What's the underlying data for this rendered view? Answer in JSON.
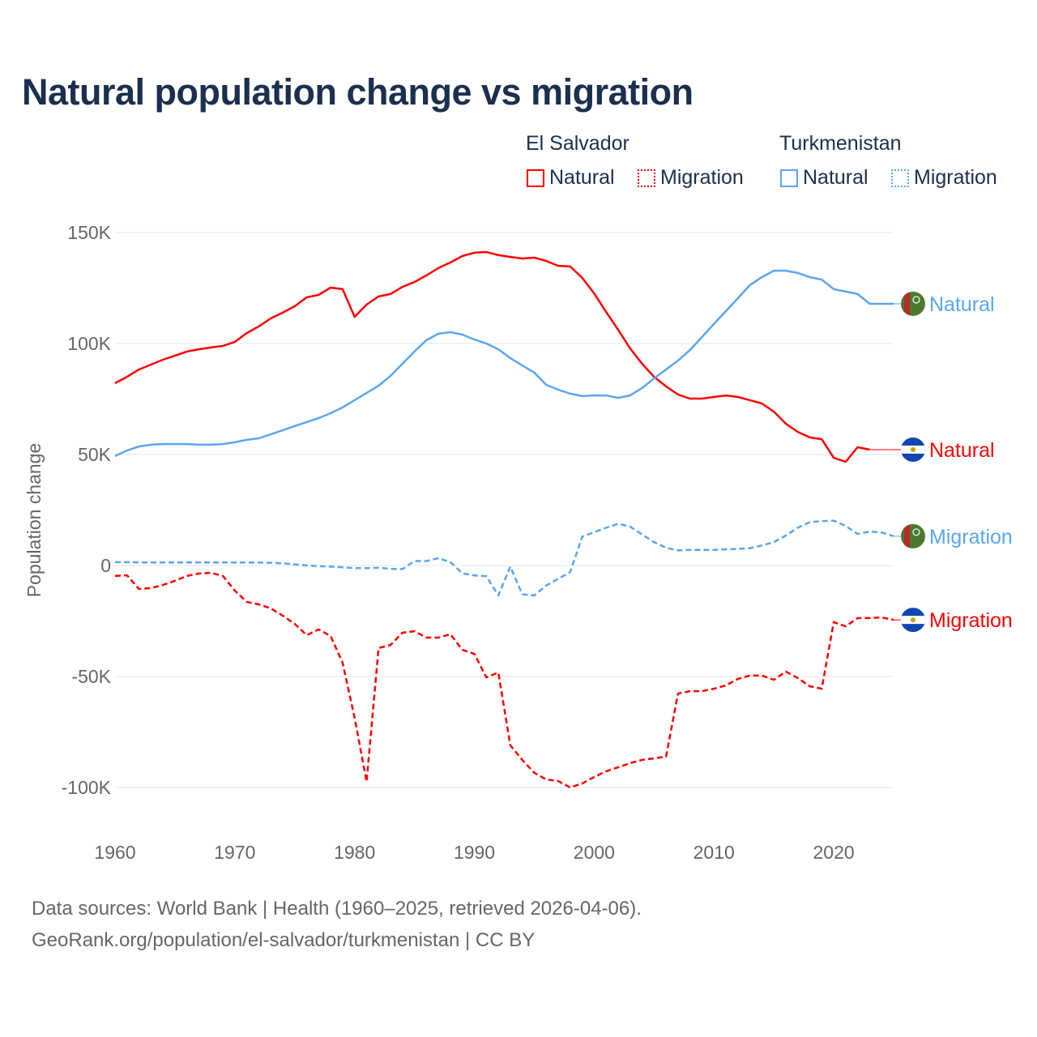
{
  "title": "Natural population change vs migration",
  "legend": {
    "groups": [
      {
        "name": "El Salvador",
        "color": "#ff0000",
        "items": [
          "Natural",
          "Migration"
        ]
      },
      {
        "name": "Turkmenistan",
        "color": "#5ba6ee",
        "items": [
          "Natural",
          "Migration"
        ]
      }
    ]
  },
  "footer": {
    "line1": "Data sources: World Bank | Health (1960–2025, retrieved 2026-04-06).",
    "line2": "GeoRank.org/population/el-salvador/turkmenistan | CC BY"
  },
  "chart_data": {
    "type": "line",
    "title": "Natural population change vs migration",
    "xlabel": "",
    "ylabel": "Population change",
    "xlim": [
      1960,
      2025
    ],
    "ylim": [
      -110000,
      155000
    ],
    "x_ticks": [
      1960,
      1970,
      1980,
      1990,
      2000,
      2010,
      2020
    ],
    "x_tick_labels": [
      "1960",
      "1970",
      "1980",
      "1990",
      "2000",
      "2010",
      "2020"
    ],
    "y_ticks": [
      150000,
      100000,
      50000,
      0,
      -50000,
      -100000
    ],
    "y_tick_labels": [
      "150K",
      "100K",
      "50K",
      "0",
      "-50K",
      "-100K"
    ],
    "grid": true,
    "legend_position": "top-right",
    "series": [
      {
        "name": "El Salvador Natural",
        "end_label": "Natural",
        "country": "El Salvador",
        "color": "#ff0000",
        "dashed": false,
        "start": 1960,
        "values_k": [
          82.1,
          85,
          88.3,
          90.5,
          92.7,
          94.5,
          96.4,
          97.4,
          98.2,
          98.9,
          100.7,
          104.7,
          107.7,
          111.3,
          113.9,
          116.8,
          120.8,
          121.9,
          125.2,
          124.5,
          112,
          117.5,
          121.2,
          122.3,
          125.5,
          127.7,
          130.7,
          134,
          136.5,
          139.4,
          140.9,
          141.2,
          139.8,
          139,
          138.3,
          138.7,
          137.2,
          135,
          134.7,
          129.6,
          122.6,
          114.2,
          106.2,
          97.8,
          90.9,
          85,
          80.7,
          77,
          75.2,
          75.2,
          75.9,
          76.6,
          75.9,
          74.5,
          73,
          69.3,
          63.9,
          60.2,
          57.7,
          56.9,
          48.5,
          46.7,
          53.3,
          52.2
        ]
      },
      {
        "name": "Turkmenistan Natural",
        "end_label": "Natural",
        "country": "Turkmenistan",
        "color": "#5ba6ee",
        "dashed": false,
        "start": 1960,
        "values_k": [
          49.3,
          51.8,
          53.6,
          54.4,
          54.7,
          54.7,
          54.7,
          54.4,
          54.4,
          54.7,
          55.5,
          56.6,
          57.3,
          59.1,
          60.9,
          62.8,
          64.6,
          66.4,
          68.6,
          71.2,
          74.5,
          77.7,
          81,
          85.4,
          90.9,
          96.4,
          101.5,
          104.4,
          105.1,
          104,
          101.8,
          100,
          97.4,
          93.4,
          90.1,
          86.9,
          81.4,
          79.2,
          77.4,
          76.3,
          76.6,
          76.6,
          75.5,
          76.6,
          79.9,
          84.3,
          88.3,
          92.3,
          97.1,
          102.9,
          108.8,
          114.6,
          120.4,
          126.3,
          129.9,
          132.8,
          132.8,
          131.8,
          129.9,
          128.8,
          124.5,
          123.4,
          122.3,
          117.9,
          117.9,
          117.9
        ]
      },
      {
        "name": "Turkmenistan Migration",
        "end_label": "Migration",
        "country": "Turkmenistan",
        "color": "#5ba6ee",
        "dashed": true,
        "start": 1960,
        "values_k": [
          1.5,
          1.5,
          1.4,
          1.4,
          1.4,
          1.4,
          1.4,
          1.4,
          1.4,
          1.4,
          1.3,
          1.3,
          1.3,
          1.2,
          1,
          0.5,
          0,
          -0.3,
          -0.5,
          -0.8,
          -1.2,
          -1.2,
          -1,
          -1.5,
          -1.6,
          2,
          2,
          3.3,
          1.5,
          -3.5,
          -4.5,
          -4.8,
          -13.5,
          -0.5,
          -13,
          -13.5,
          -9,
          -6,
          -3,
          13,
          15,
          17,
          18.8,
          17.5,
          14,
          10.5,
          8,
          6.8,
          7,
          7,
          7,
          7.3,
          7.5,
          7.8,
          9,
          10.5,
          13.5,
          17,
          19.5,
          20,
          20.2,
          17.8,
          14.2,
          15.3,
          14.9,
          13.2
        ]
      },
      {
        "name": "El Salvador Migration",
        "end_label": "Migration",
        "country": "El Salvador",
        "color": "#ff0000",
        "dashed": true,
        "start": 1960,
        "values_k": [
          -4.7,
          -4.4,
          -10.6,
          -10.2,
          -8.8,
          -6.9,
          -4.7,
          -3.6,
          -3.3,
          -4.7,
          -11.3,
          -16.4,
          -17.5,
          -19.3,
          -22.6,
          -26.3,
          -31.4,
          -28.8,
          -31.8,
          -43.8,
          -68.6,
          -97.4,
          -37.2,
          -35.8,
          -30.3,
          -29.6,
          -32.5,
          -32.5,
          -31,
          -38,
          -39.8,
          -50.4,
          -48.2,
          -81,
          -87.6,
          -93.4,
          -96.4,
          -97.1,
          -100,
          -98.2,
          -95.3,
          -92.7,
          -90.9,
          -89,
          -87.6,
          -86.9,
          -86.1,
          -57.7,
          -56.6,
          -56.6,
          -55.5,
          -54,
          -51.1,
          -49.6,
          -49.6,
          -51.5,
          -47.8,
          -50.7,
          -54.4,
          -55.5,
          -25.5,
          -27.4,
          -23.7,
          -23.7,
          -23.4,
          -24.5
        ]
      }
    ]
  }
}
